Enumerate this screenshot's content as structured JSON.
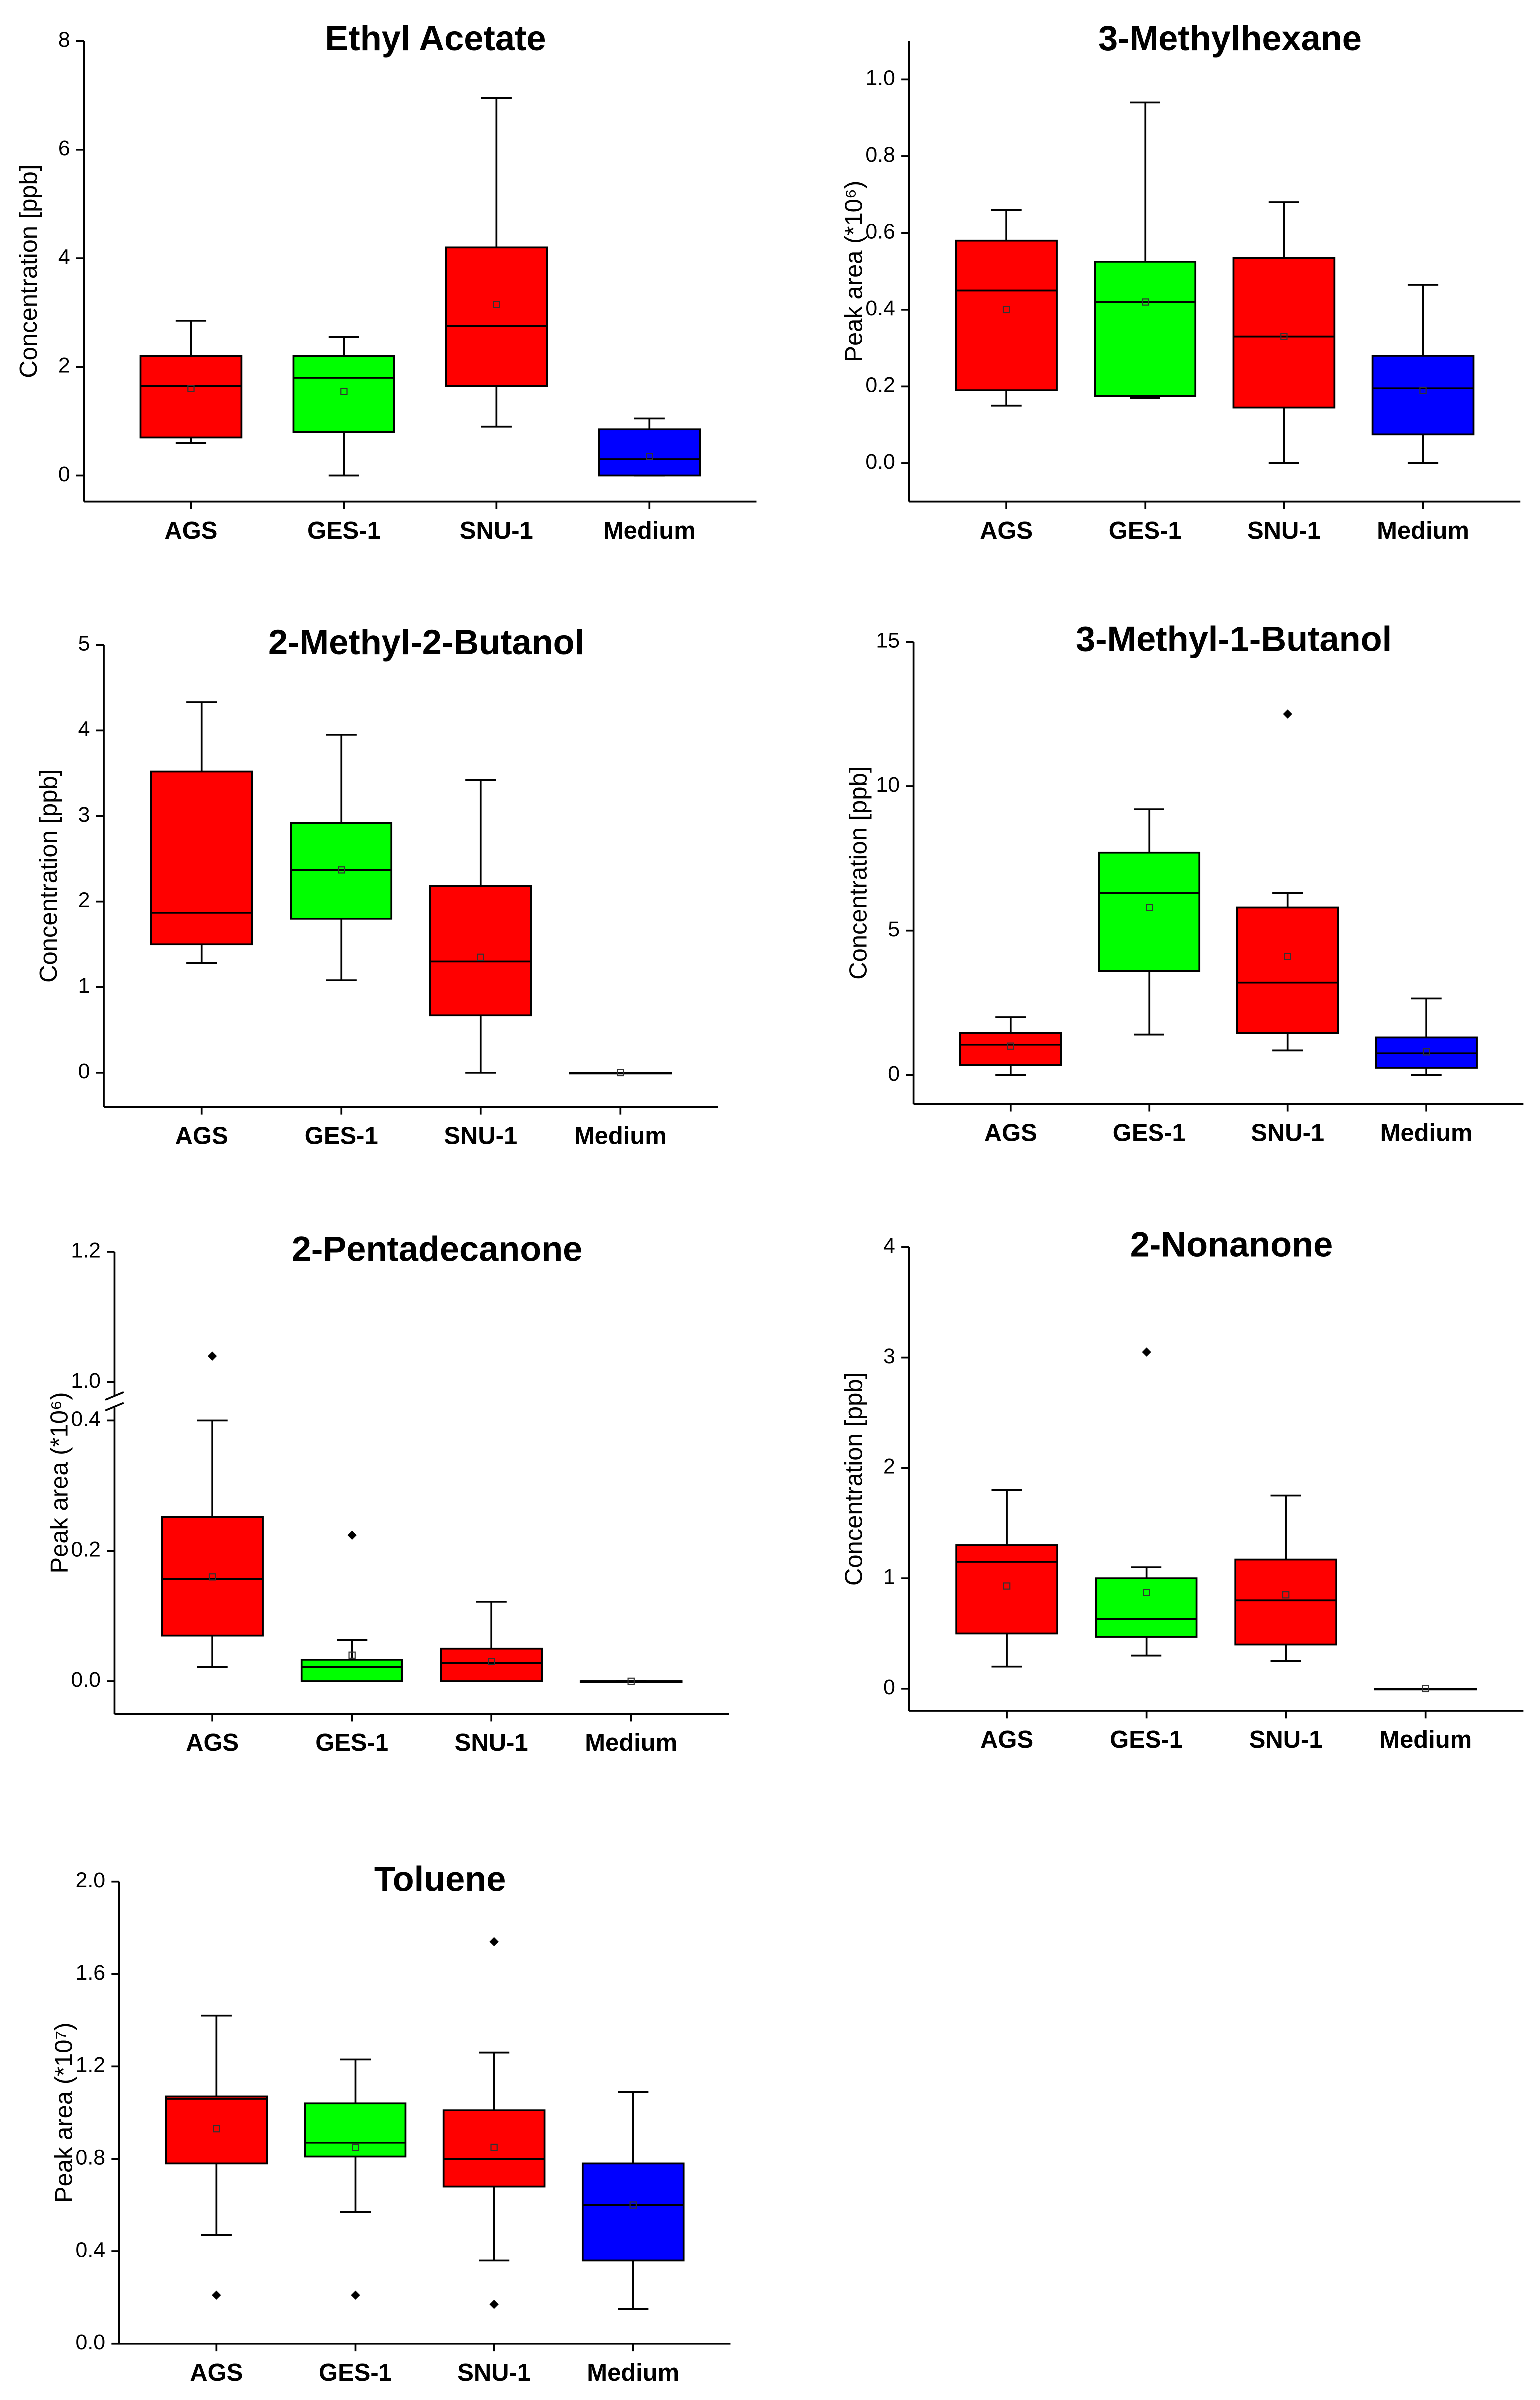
{
  "chart_data": [
    {
      "type": "box",
      "title": "Ethyl Acetate",
      "ylabel": "Concentration [ppb]",
      "categories": [
        "AGS",
        "GES-1",
        "SNU-1",
        "Medium"
      ],
      "colors": [
        "#ff0000",
        "#00ff00",
        "#ff0000",
        "#0000ff"
      ],
      "whisker_low": [
        0.6,
        0,
        0.9,
        0
      ],
      "q1": [
        0.7,
        0.8,
        1.65,
        0
      ],
      "median": [
        1.65,
        1.8,
        2.75,
        0.3
      ],
      "q3": [
        2.2,
        2.2,
        4.2,
        0.85
      ],
      "whisker_high": [
        2.85,
        2.55,
        6.95,
        1.05
      ],
      "mean": [
        1.6,
        1.55,
        3.15,
        0.35
      ],
      "outliers": [
        [],
        [],
        [],
        []
      ],
      "ylim": [
        -0.48,
        8
      ],
      "yticks": [
        0,
        2,
        4,
        6,
        8
      ]
    },
    {
      "type": "box",
      "title": "3-Methylhexane",
      "ylabel": "Peak area (*10⁶)",
      "categories": [
        "AGS",
        "GES-1",
        "SNU-1",
        "Medium"
      ],
      "colors": [
        "#ff0000",
        "#00ff00",
        "#ff0000",
        "#0000ff"
      ],
      "whisker_low": [
        0.15,
        0.17,
        0,
        0
      ],
      "q1": [
        0.19,
        0.175,
        0.145,
        0.075
      ],
      "median": [
        0.45,
        0.42,
        0.33,
        0.195
      ],
      "q3": [
        0.58,
        0.525,
        0.535,
        0.28
      ],
      "whisker_high": [
        0.66,
        0.94,
        0.68,
        0.465
      ],
      "mean": [
        0.4,
        0.42,
        0.33,
        0.19
      ],
      "outliers": [
        [],
        [],
        [],
        []
      ],
      "ylim": [
        -0.1,
        1.1
      ],
      "yticks": [
        {
          "value": 0,
          "label": "0.0"
        },
        0.2,
        0.4,
        0.6,
        0.8,
        {
          "value": 1,
          "label": "1.0"
        }
      ]
    },
    {
      "type": "box",
      "title": "2-Methyl-2-Butanol",
      "ylabel": "Concentration [ppb]",
      "categories": [
        "AGS",
        "GES-1",
        "SNU-1",
        "Medium"
      ],
      "colors": [
        "#ff0000",
        "#00ff00",
        "#ff0000",
        "#0000ff"
      ],
      "whisker_low": [
        1.28,
        1.08,
        0,
        0
      ],
      "q1": [
        1.5,
        1.8,
        0.67,
        0
      ],
      "median": [
        1.87,
        2.37,
        1.3,
        0
      ],
      "q3": [
        3.52,
        2.92,
        2.18,
        0
      ],
      "whisker_high": [
        4.33,
        3.95,
        3.42,
        0
      ],
      "mean": [
        null,
        2.37,
        1.35,
        0
      ],
      "outliers": [
        [],
        [],
        [],
        []
      ],
      "ylim": [
        -0.4,
        5
      ],
      "yticks": [
        0,
        1,
        2,
        3,
        4,
        5
      ]
    },
    {
      "type": "box",
      "title": "3-Methyl-1-Butanol",
      "ylabel": "Concentration [ppb]",
      "categories": [
        "AGS",
        "GES-1",
        "SNU-1",
        "Medium"
      ],
      "colors": [
        "#ff0000",
        "#00ff00",
        "#ff0000",
        "#0000ff"
      ],
      "whisker_low": [
        0,
        1.4,
        0.85,
        0
      ],
      "q1": [
        0.35,
        3.6,
        1.45,
        0.25
      ],
      "median": [
        1.05,
        6.3,
        3.2,
        0.75
      ],
      "q3": [
        1.45,
        7.7,
        5.8,
        1.3
      ],
      "whisker_high": [
        2.0,
        9.2,
        6.3,
        2.65
      ],
      "mean": [
        1.0,
        5.8,
        4.1,
        0.8
      ],
      "outliers": [
        [],
        [],
        [
          12.5
        ],
        []
      ],
      "ylim": [
        -1,
        15
      ],
      "yticks": [
        0,
        5,
        10,
        15
      ]
    },
    {
      "type": "box",
      "title": "2-Pentadecanone",
      "ylabel": "Peak area (*10⁶)",
      "categories": [
        "AGS",
        "GES-1",
        "SNU-1",
        "Medium"
      ],
      "colors": [
        "#ff0000",
        "#00ff00",
        "#ff0000",
        "#0000ff"
      ],
      "whisker_low": [
        0.022,
        0,
        0,
        0
      ],
      "q1": [
        0.07,
        0,
        0,
        0
      ],
      "median": [
        0.157,
        0.022,
        0.028,
        0
      ],
      "q3": [
        0.252,
        0.033,
        0.05,
        0
      ],
      "whisker_high": [
        0.4,
        0.063,
        0.122,
        0
      ],
      "mean": [
        0.16,
        0.04,
        0.03,
        0
      ],
      "outliers": [
        [
          1.04
        ],
        [
          0.224
        ],
        [],
        []
      ],
      "ylim": [
        -0.05,
        1.2
      ],
      "ybreak": [
        0.42,
        0.98
      ],
      "yticks": [
        {
          "value": 0,
          "label": "0.0"
        },
        0.2,
        0.4,
        {
          "value": 1,
          "label": "1.0"
        },
        1.2
      ]
    },
    {
      "type": "box",
      "title": "2-Nonanone",
      "ylabel": "Concentration [ppb]",
      "categories": [
        "AGS",
        "GES-1",
        "SNU-1",
        "Medium"
      ],
      "colors": [
        "#ff0000",
        "#00ff00",
        "#ff0000",
        "#0000ff"
      ],
      "whisker_low": [
        0.2,
        0.3,
        0.25,
        0
      ],
      "q1": [
        0.5,
        0.47,
        0.4,
        0
      ],
      "median": [
        1.15,
        0.63,
        0.8,
        0
      ],
      "q3": [
        1.3,
        1.0,
        1.17,
        0
      ],
      "whisker_high": [
        1.8,
        1.1,
        1.75,
        0
      ],
      "mean": [
        0.93,
        0.87,
        0.85,
        0
      ],
      "outliers": [
        [],
        [
          3.05
        ],
        [],
        []
      ],
      "ylim": [
        -0.2,
        4
      ],
      "yticks": [
        0,
        1,
        2,
        3,
        4
      ]
    },
    {
      "type": "box",
      "title": "Toluene",
      "ylabel": "Peak area (*10⁷)",
      "categories": [
        "AGS",
        "GES-1",
        "SNU-1",
        "Medium"
      ],
      "colors": [
        "#ff0000",
        "#00ff00",
        "#ff0000",
        "#0000ff"
      ],
      "whisker_low": [
        0.47,
        0.57,
        0.36,
        0.15
      ],
      "q1": [
        0.78,
        0.81,
        0.68,
        0.36
      ],
      "median": [
        1.06,
        0.87,
        0.8,
        0.6
      ],
      "q3": [
        1.07,
        1.04,
        1.01,
        0.78
      ],
      "whisker_high": [
        1.42,
        1.23,
        1.26,
        1.09
      ],
      "mean": [
        0.93,
        0.85,
        0.85,
        0.6
      ],
      "outliers": [
        [
          0.21
        ],
        [
          0.21
        ],
        [
          0.17,
          1.74
        ],
        []
      ],
      "ylim": [
        0,
        2
      ],
      "yticks": [
        {
          "value": 0,
          "label": "0.0"
        },
        0.4,
        0.8,
        1.2,
        1.6,
        {
          "value": 2,
          "label": "2.0"
        }
      ]
    }
  ]
}
